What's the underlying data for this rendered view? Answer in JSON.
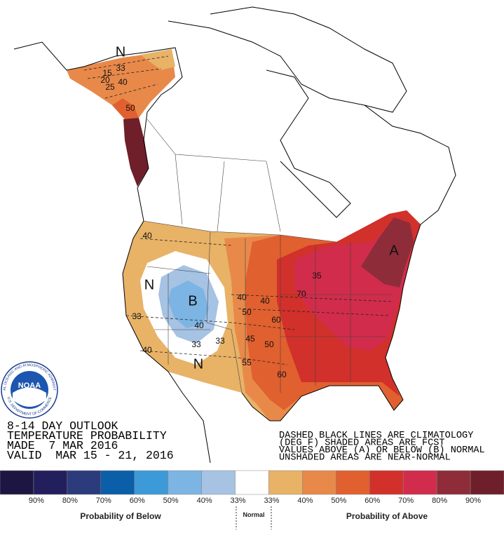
{
  "logo": {
    "name": "NOAA",
    "ring_top": "NATIONAL OCEANIC AND ATMOSPHERIC ADMINISTRATION",
    "ring_bottom": "U.S. DEPARTMENT OF COMMERCE"
  },
  "outlook": {
    "lines": [
      "8-14 DAY OUTLOOK",
      "TEMPERATURE PROBABILITY",
      "MADE  7 MAR 2016",
      "VALID  MAR 15 - 21, 2016"
    ]
  },
  "notes": {
    "lines": [
      "DASHED BLACK LINES ARE CLIMATOLOGY",
      "(DEG F) SHADED AREAS ARE FCST",
      "VALUES ABOVE (A) OR BELOW (B) NORMAL",
      "UNSHADED AREAS ARE NEAR-NORMAL"
    ]
  },
  "map_labels": [
    "N",
    "33",
    "15",
    "20",
    "25",
    "40",
    "50",
    "40",
    "N",
    "B",
    "40",
    "50",
    "40",
    "60",
    "70",
    "33",
    "40",
    "33",
    "33",
    "45",
    "50",
    "40",
    "N",
    "55",
    "60",
    "A",
    "35"
  ],
  "legend": {
    "colors": [
      "#1d1642",
      "#231e5c",
      "#2b3b7b",
      "#0b5ea8",
      "#3d9ad8",
      "#7cb4e3",
      "#a6c3e4",
      "#ffffff",
      "#e8b267",
      "#e8894a",
      "#e0602f",
      "#d2302b",
      "#d12c4b",
      "#8e2c3a",
      "#6e1f2a"
    ],
    "labels": [
      "90%",
      "80%",
      "70%",
      "60%",
      "50%",
      "40%",
      "33%",
      "33%",
      "40%",
      "50%",
      "60%",
      "70%",
      "80%",
      "90%"
    ],
    "below": "Probability of Below",
    "normal": "Normal",
    "above": "Probability of Above"
  }
}
